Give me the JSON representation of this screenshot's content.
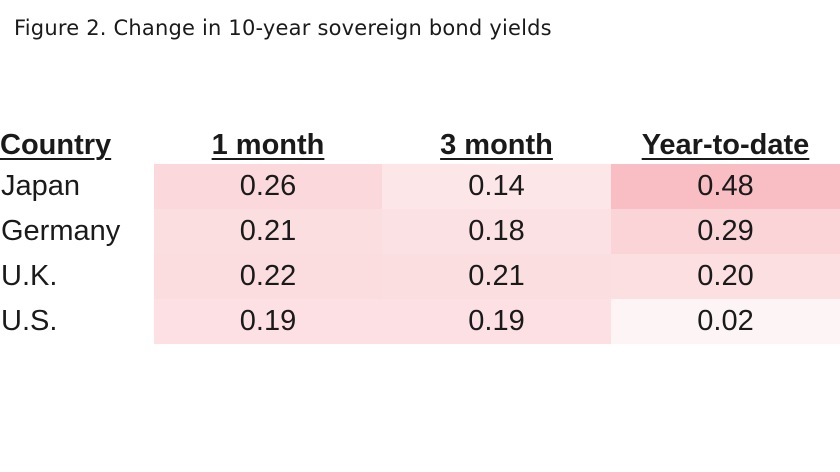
{
  "title": "Figure 2. Change in 10-year sovereign bond yields",
  "chart_data": {
    "type": "table",
    "title": "Figure 2. Change in 10-year sovereign bond yields",
    "columns": [
      "Country",
      "1 month",
      "3 month",
      "Year-to-date"
    ],
    "rows": [
      {
        "country": "Japan",
        "values": [
          "0.26",
          "0.14",
          "0.48"
        ]
      },
      {
        "country": "Germany",
        "values": [
          "0.21",
          "0.18",
          "0.29"
        ]
      },
      {
        "country": "U.K.",
        "values": [
          "0.22",
          "0.21",
          "0.20"
        ]
      },
      {
        "country": "U.S.",
        "values": [
          "0.19",
          "0.19",
          "0.02"
        ]
      }
    ],
    "heatmap": {
      "low_color": "#fdf4f5",
      "high_color": "#f9bec3",
      "range": [
        0.02,
        0.48
      ]
    }
  }
}
